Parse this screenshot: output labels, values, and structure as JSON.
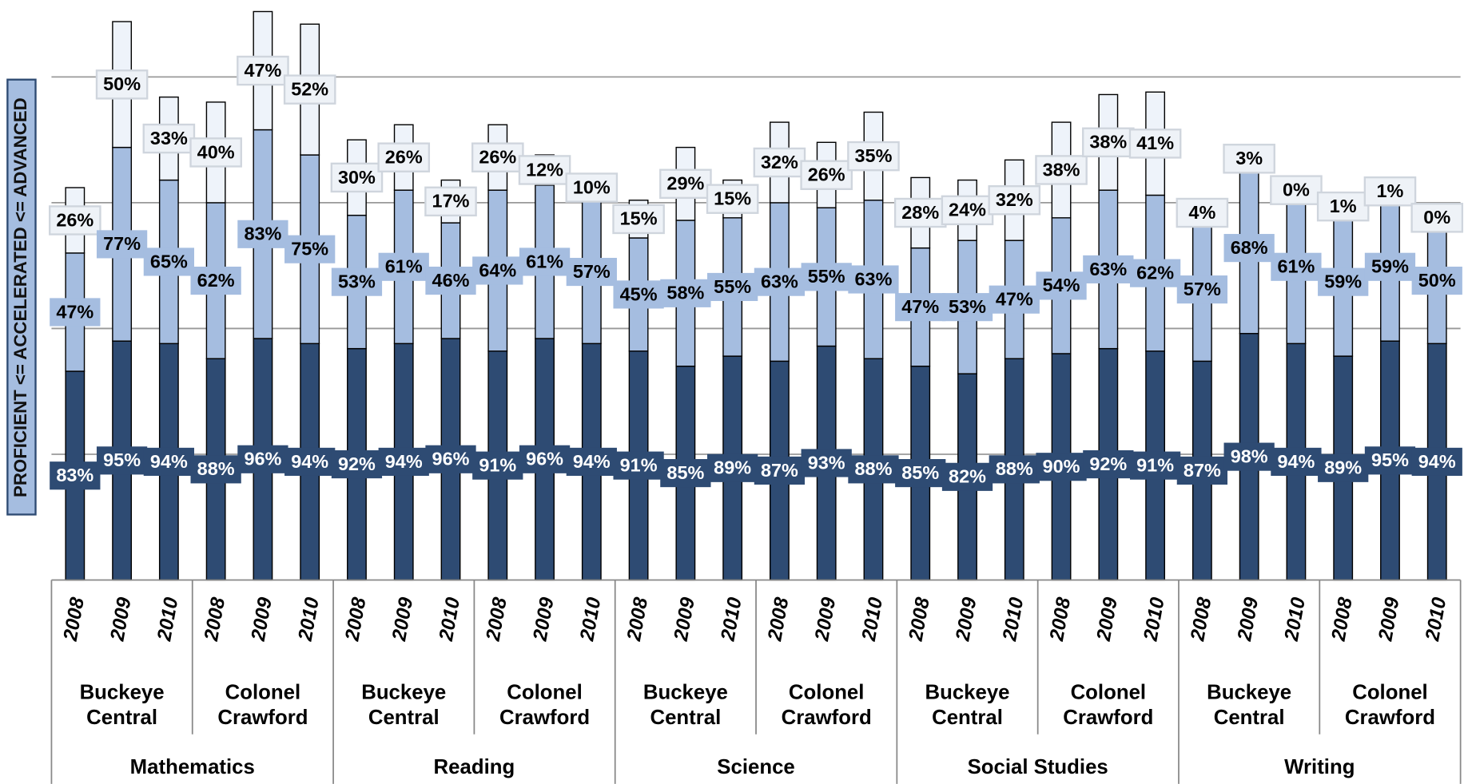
{
  "chart_data": {
    "type": "stacked-bar",
    "y_label": "PROFICIENT <= ACCELERATED <= ADVANCED",
    "categories": [
      "2008",
      "2009",
      "2010",
      "2008",
      "2009",
      "2010",
      "2008",
      "2009",
      "2010",
      "2008",
      "2009",
      "2010",
      "2008",
      "2009",
      "2010",
      "2008",
      "2009",
      "2010",
      "2008",
      "2009",
      "2010",
      "2008",
      "2009",
      "2010",
      "2008",
      "2009",
      "2010",
      "2008",
      "2009",
      "2010"
    ],
    "schools": [
      "Buckeye Central",
      "Colonel Crawford",
      "Buckeye Central",
      "Colonel Crawford",
      "Buckeye Central",
      "Colonel Crawford",
      "Buckeye Central",
      "Colonel Crawford",
      "Buckeye Central",
      "Colonel Crawford"
    ],
    "subjects": [
      "Mathematics",
      "Reading",
      "Science",
      "Social Studies",
      "Writing"
    ],
    "series": [
      {
        "color": "#2e4b73",
        "label_color": "#ffffff",
        "values": [
          83,
          95,
          94,
          88,
          96,
          94,
          92,
          94,
          96,
          91,
          96,
          94,
          91,
          85,
          89,
          87,
          93,
          88,
          85,
          82,
          88,
          90,
          92,
          91,
          87,
          98,
          94,
          89,
          95,
          94
        ],
        "value_labels": [
          "83%",
          "95%",
          "94%",
          "88%",
          "96%",
          "94%",
          "92%",
          "94%",
          "96%",
          "91%",
          "96%",
          "94%",
          "91%",
          "85%",
          "89%",
          "87%",
          "93%",
          "88%",
          "85%",
          "82%",
          "88%",
          "90%",
          "92%",
          "91%",
          "87%",
          "98%",
          "94%",
          "89%",
          "95%",
          "94%"
        ]
      },
      {
        "color": "#a5bde0",
        "label_color": "#000000",
        "values": [
          47,
          77,
          65,
          62,
          83,
          75,
          53,
          61,
          46,
          64,
          61,
          57,
          45,
          58,
          55,
          63,
          55,
          63,
          47,
          53,
          47,
          54,
          63,
          62,
          57,
          68,
          61,
          59,
          59,
          50
        ],
        "value_labels": [
          "47%",
          "77%",
          "65%",
          "62%",
          "83%",
          "75%",
          "53%",
          "61%",
          "46%",
          "64%",
          "61%",
          "57%",
          "45%",
          "58%",
          "55%",
          "63%",
          "55%",
          "63%",
          "47%",
          "53%",
          "47%",
          "54%",
          "63%",
          "62%",
          "57%",
          "68%",
          "61%",
          "59%",
          "59%",
          "50%"
        ]
      },
      {
        "color": "#eef3fa",
        "label_color": "#000000",
        "values": [
          26,
          50,
          33,
          40,
          47,
          52,
          30,
          26,
          17,
          26,
          12,
          10,
          15,
          29,
          15,
          32,
          26,
          35,
          28,
          24,
          32,
          38,
          38,
          41,
          4,
          3,
          0,
          1,
          1,
          0
        ],
        "value_labels": [
          "26%",
          "50%",
          "33%",
          "40%",
          "47%",
          "52%",
          "30%",
          "26%",
          "17%",
          "26%",
          "12%",
          "10%",
          "15%",
          "29%",
          "15%",
          "32%",
          "26%",
          "35%",
          "28%",
          "24%",
          "32%",
          "38%",
          "38%",
          "41%",
          "4%",
          "3%",
          "0%",
          "1%",
          "1%",
          "0%"
        ]
      }
    ],
    "ylim": [
      0,
      230
    ],
    "yticks": [
      50,
      100,
      150,
      200
    ],
    "grid": true
  }
}
